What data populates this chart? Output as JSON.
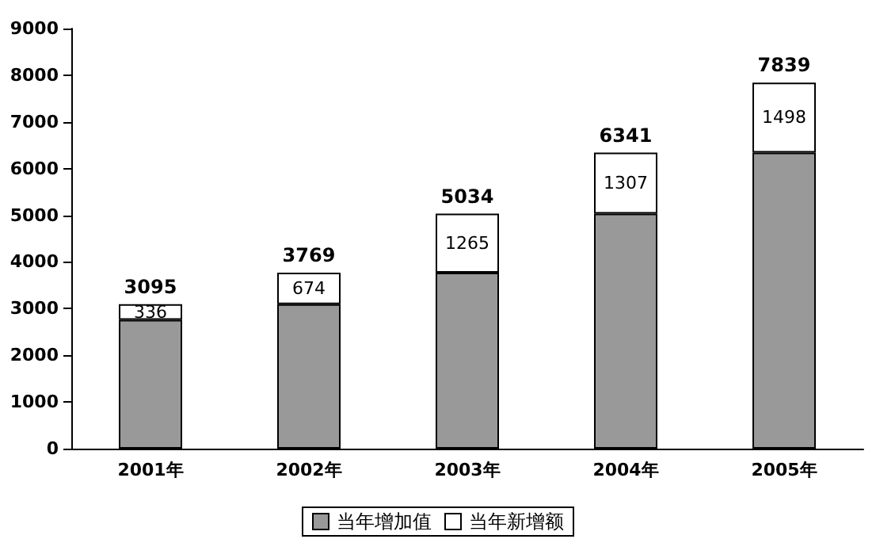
{
  "chart_data": {
    "type": "bar",
    "stacked": true,
    "categories": [
      "2001年",
      "2002年",
      "2003年",
      "2004年",
      "2005年"
    ],
    "series": [
      {
        "name": "当年增加值",
        "color": "#999999",
        "values": [
          2759,
          3095,
          3769,
          5034,
          6341
        ]
      },
      {
        "name": "当年新增额",
        "color": "#ffffff",
        "values": [
          336,
          674,
          1265,
          1307,
          1498
        ],
        "value_labels": [
          "336",
          "674",
          "1265",
          "1307",
          "1498"
        ]
      }
    ],
    "totals": [
      "3095",
      "3769",
      "5034",
      "6341",
      "7839"
    ],
    "ylim": [
      0,
      9000
    ],
    "yticks": [
      0,
      1000,
      2000,
      3000,
      4000,
      5000,
      6000,
      7000,
      8000,
      9000
    ],
    "grid": false,
    "legend": "bottom"
  }
}
